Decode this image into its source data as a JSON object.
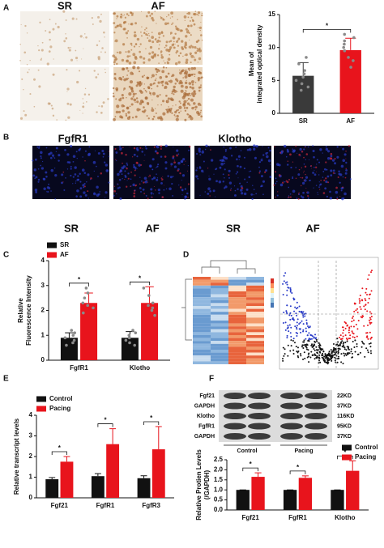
{
  "panels": {
    "letters": [
      "A",
      "B",
      "C",
      "D",
      "E",
      "F"
    ],
    "a_images": {
      "labels": [
        "SR",
        "AF"
      ]
    },
    "b_images": {
      "titles": [
        "FgfR1",
        "Klotho"
      ],
      "labels": [
        "SR",
        "AF",
        "SR",
        "AF"
      ]
    },
    "f_blot": {
      "rows": [
        "Fgf21",
        "GAPDH",
        "Klotho",
        "FgfR1",
        "GAPDH"
      ],
      "sizes": [
        "22KD",
        "37KD",
        "116KD",
        "95KD",
        "37KD"
      ],
      "groups": [
        "Control",
        "Pacing"
      ]
    }
  },
  "chart_data": [
    {
      "type": "bar",
      "ylabel": [
        "Mean of",
        "integrated optical density"
      ],
      "categories": [
        "SR",
        "AF"
      ],
      "values": [
        5.7,
        9.6
      ],
      "errors": [
        2.0,
        1.8
      ],
      "colors": [
        "#3a3a3a",
        "#e8141c"
      ],
      "points": [
        [
          3.5,
          4.0,
          4.5,
          5.0,
          5.5,
          6.0,
          6.5,
          7.5,
          8.5
        ],
        [
          7.0,
          8.0,
          8.5,
          9.5,
          10.0,
          10.5,
          11.0,
          11.5,
          12.0
        ]
      ],
      "ylim": [
        0,
        15
      ],
      "yticks": [
        0,
        5,
        10,
        15
      ],
      "annotations": [
        "*"
      ]
    },
    {
      "type": "bar",
      "ylabel": [
        "Relative",
        "Fluorescence Intensity"
      ],
      "categories": [
        "FgfR1",
        "Klotho"
      ],
      "series": [
        {
          "name": "SR",
          "color": "#111111",
          "values": [
            0.9,
            0.9
          ],
          "errors": [
            0.2,
            0.25
          ],
          "points": [
            [
              0.6,
              0.7,
              0.8,
              0.9,
              1.0,
              1.1,
              1.2
            ],
            [
              0.6,
              0.7,
              0.8,
              0.9,
              1.0,
              1.1,
              1.2
            ]
          ]
        },
        {
          "name": "AF",
          "color": "#e8141c",
          "values": [
            2.3,
            2.3
          ],
          "errors": [
            0.4,
            0.65
          ],
          "points": [
            [
              1.9,
              2.1,
              2.2,
              2.3,
              2.5,
              2.7,
              2.9
            ],
            [
              1.8,
              2.0,
              2.1,
              2.2,
              2.3,
              2.6,
              2.9
            ]
          ]
        }
      ],
      "ylim": [
        0,
        4
      ],
      "yticks": [
        0,
        1,
        2,
        3,
        4
      ],
      "annotations": [
        "*",
        "*"
      ]
    },
    {
      "type": "bar",
      "ylabel": [
        "Relative transcript levels"
      ],
      "categories": [
        "Fgf21",
        "FgfR1",
        "FgfR3"
      ],
      "series": [
        {
          "name": "Control",
          "color": "#111111",
          "values": [
            0.9,
            1.05,
            0.95
          ],
          "errors": [
            0.08,
            0.12,
            0.12
          ]
        },
        {
          "name": "Pacing",
          "color": "#e8141c",
          "values": [
            1.75,
            2.6,
            2.35
          ],
          "errors": [
            0.25,
            0.75,
            1.1
          ]
        }
      ],
      "ylim": [
        0,
        4
      ],
      "yticks": [
        0,
        1,
        2,
        3,
        4
      ],
      "annotations": [
        "*",
        "*",
        "*"
      ]
    },
    {
      "type": "bar",
      "ylabel": [
        "Relative Protien Levels",
        "(/GAPDH)"
      ],
      "categories": [
        "Fgf21",
        "FgfR1",
        "Klotho"
      ],
      "series": [
        {
          "name": "Control",
          "color": "#111111",
          "values": [
            1,
            1,
            1
          ],
          "errors": [
            0,
            0,
            0
          ]
        },
        {
          "name": "Pacing",
          "color": "#e8141c",
          "values": [
            1.65,
            1.6,
            1.95
          ],
          "errors": [
            0.2,
            0.1,
            0.5
          ]
        }
      ],
      "ylim": [
        0,
        2.5
      ],
      "yticks": [
        {
          "value": 0,
          "label": "0.0"
        },
        0.5,
        {
          "value": 1,
          "label": "1.0"
        },
        1.5,
        {
          "value": 2,
          "label": "2.0"
        },
        2.5
      ],
      "annotations": [
        "*",
        "*",
        "*"
      ]
    }
  ]
}
